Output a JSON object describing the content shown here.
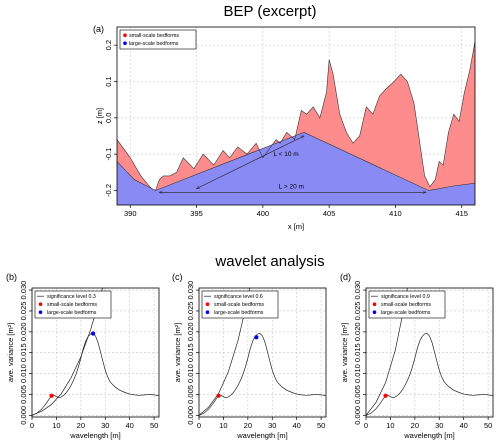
{
  "titles": {
    "top": "BEP (excerpt)",
    "bottom": "wavelet analysis"
  },
  "chart_data": [
    {
      "panel": "(a)",
      "type": "area",
      "xlabel": "x [m]",
      "ylabel": "z [m]",
      "xlim": [
        389,
        416
      ],
      "ylim": [
        -0.24,
        0.25
      ],
      "xticks": [
        390,
        395,
        400,
        405,
        410,
        415
      ],
      "yticks": [
        -0.2,
        -0.1,
        0.0,
        0.1,
        0.2
      ],
      "grid": true,
      "legend": {
        "position": "top-left",
        "entries": [
          {
            "label": "small-scale bedforms",
            "color": "#ff8c8c"
          },
          {
            "label": "large-scale bedforms",
            "color": "#8a8af5"
          }
        ]
      },
      "profile": {
        "x": [
          389,
          390,
          390.8,
          391.6,
          391.9,
          392.2,
          392.5,
          393,
          393.5,
          394,
          394.8,
          395.5,
          396.3,
          397,
          397.5,
          398.1,
          398.8,
          399.5,
          400,
          400.6,
          401,
          401.3,
          401.8,
          402.4,
          402.9,
          403.3,
          403.8,
          404.3,
          404.8,
          405,
          405.3,
          405.8,
          406.3,
          406.8,
          407.3,
          407.8,
          408.3,
          408.8,
          409.3,
          409.9,
          410.4,
          410.9,
          411.4,
          411.8,
          412.2,
          412.6,
          413,
          413.3,
          413.6,
          414,
          414.4,
          414.8,
          415.2,
          415.6,
          416
        ],
        "z": [
          -0.06,
          -0.11,
          -0.16,
          -0.195,
          -0.2,
          -0.17,
          -0.16,
          -0.16,
          -0.15,
          -0.11,
          -0.14,
          -0.1,
          -0.13,
          -0.09,
          -0.11,
          -0.08,
          -0.1,
          -0.07,
          -0.11,
          -0.08,
          -0.06,
          -0.07,
          -0.04,
          -0.06,
          0.02,
          0.01,
          0.03,
          0.0,
          0.07,
          0.16,
          0.12,
          0.01,
          -0.04,
          -0.07,
          -0.05,
          0.03,
          0.01,
          0.06,
          0.08,
          0.1,
          0.12,
          0.1,
          0.04,
          -0.06,
          -0.16,
          -0.19,
          -0.17,
          -0.12,
          -0.13,
          -0.04,
          0.01,
          -0.01,
          0.07,
          0.13,
          0.21
        ]
      },
      "large_scale": {
        "x": [
          389,
          390.3,
          391.9,
          403.1,
          412.5,
          413.3,
          414.3,
          416
        ],
        "z": [
          -0.12,
          -0.17,
          -0.2,
          -0.04,
          -0.2,
          -0.195,
          -0.188,
          -0.18
        ]
      },
      "annotations": [
        {
          "label": "L < 10 m",
          "from": [
            395,
            -0.195
          ],
          "to": [
            403.1,
            -0.05
          ]
        },
        {
          "label": "L > 20 m",
          "from": [
            392.2,
            -0.205
          ],
          "to": [
            412.3,
            -0.205
          ]
        }
      ]
    },
    {
      "panel": "(b)",
      "type": "line",
      "xlabel": "wavelength [m]",
      "ylabel": "ave. variance [m²]",
      "xlim": [
        0,
        52
      ],
      "ylim": [
        -0.0004,
        0.0305
      ],
      "xticks": [
        0,
        10,
        20,
        30,
        40,
        50
      ],
      "yticks": [
        0.0,
        0.005,
        0.01,
        0.015,
        0.02,
        0.025,
        0.03
      ],
      "legend": {
        "position": "top-left",
        "entries": [
          {
            "label": "significance level 0.3",
            "color": "#000000"
          },
          {
            "label": "small-scale bedforms",
            "color": "#ff0000"
          },
          {
            "label": "large-scale bedforms",
            "color": "#0000ff"
          }
        ]
      },
      "points": [
        {
          "x": 8,
          "y": 0.0047,
          "color": "#ff0000"
        },
        {
          "x": 25,
          "y": 0.0196,
          "color": "#0000ff"
        }
      ],
      "significance_scale": 0.3
    },
    {
      "panel": "(c)",
      "type": "line",
      "xlabel": "wavelength [m]",
      "ylabel": "ave. variance [m²]",
      "xlim": [
        0,
        52
      ],
      "ylim": [
        -0.0004,
        0.0305
      ],
      "xticks": [
        0,
        10,
        20,
        30,
        40,
        50
      ],
      "yticks": [
        0.0,
        0.005,
        0.01,
        0.015,
        0.02,
        0.025,
        0.03
      ],
      "legend": {
        "position": "top-left",
        "entries": [
          {
            "label": "significance level 0.6",
            "color": "#000000"
          },
          {
            "label": "small-scale bedforms",
            "color": "#ff0000"
          },
          {
            "label": "large-scale bedforms",
            "color": "#0000ff"
          }
        ]
      },
      "points": [
        {
          "x": 8,
          "y": 0.0047,
          "color": "#ff0000"
        },
        {
          "x": 23.5,
          "y": 0.0187,
          "color": "#0000ff"
        }
      ],
      "significance_scale": 0.6
    },
    {
      "panel": "(d)",
      "type": "line",
      "xlabel": "wavelength [m]",
      "ylabel": "ave. variance [m²]",
      "xlim": [
        0,
        52
      ],
      "ylim": [
        -0.0004,
        0.0305
      ],
      "xticks": [
        0,
        10,
        20,
        30,
        40,
        50
      ],
      "yticks": [
        0.0,
        0.005,
        0.01,
        0.015,
        0.02,
        0.025,
        0.03
      ],
      "legend": {
        "position": "top-left",
        "entries": [
          {
            "label": "significance level 0.9",
            "color": "#000000"
          },
          {
            "label": "small-scale bedforms",
            "color": "#ff0000"
          },
          {
            "label": "large-scale bedforms",
            "color": "#0000ff"
          }
        ]
      },
      "points": [
        {
          "x": 8,
          "y": 0.0047,
          "color": "#ff0000"
        }
      ],
      "significance_scale": 0.9
    }
  ],
  "spectrum": {
    "wavelength": [
      0,
      2,
      4,
      6,
      7,
      8,
      9,
      10,
      11,
      12,
      13,
      14,
      15,
      16,
      17,
      18,
      19,
      20,
      21,
      22,
      23,
      24,
      25,
      26,
      27,
      28,
      29,
      30,
      31,
      32,
      34,
      36,
      38,
      40,
      42,
      44,
      46,
      48,
      50,
      52
    ],
    "variance": [
      0.0,
      0.0005,
      0.0015,
      0.003,
      0.0039,
      0.0047,
      0.0048,
      0.0045,
      0.0042,
      0.0044,
      0.0048,
      0.0054,
      0.0062,
      0.0072,
      0.0084,
      0.0098,
      0.0116,
      0.0137,
      0.016,
      0.0178,
      0.0189,
      0.0195,
      0.0196,
      0.019,
      0.0175,
      0.0153,
      0.013,
      0.0108,
      0.0092,
      0.008,
      0.0068,
      0.006,
      0.0055,
      0.0051,
      0.0049,
      0.0048,
      0.0049,
      0.005,
      0.0049,
      0.0047
    ]
  },
  "significance": {
    "wavelength": [
      0,
      4,
      8,
      12,
      16,
      20,
      24,
      28,
      32,
      36,
      40,
      44,
      48,
      52
    ],
    "base": [
      0.0,
      0.001,
      0.0026,
      0.0052,
      0.009,
      0.014,
      0.0205,
      0.0285,
      0.038,
      0.049,
      0.062,
      0.077,
      0.094,
      0.113
    ]
  },
  "colors": {
    "small": "#ff8c8c",
    "large": "#8a8af5",
    "red_point": "#ff0000",
    "blue_point": "#0000ff"
  }
}
